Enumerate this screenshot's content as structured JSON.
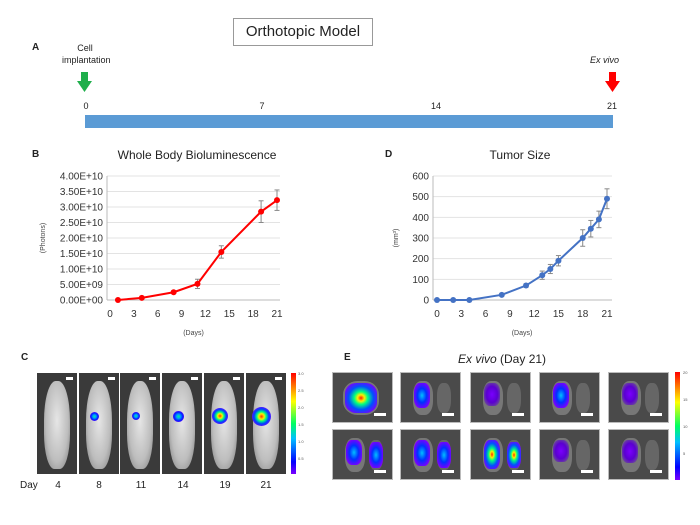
{
  "figure_title": "Orthotopic Model",
  "panel_labels": {
    "a": "A",
    "b": "B",
    "c": "C",
    "d": "D",
    "e": "E"
  },
  "timeline": {
    "start_event": "Cell implantation",
    "end_event": "Ex vivo",
    "ticks": [
      "0",
      "7",
      "14",
      "21"
    ],
    "colors": {
      "bar": "#5b9bd5",
      "start_arrow": "#1fae4b",
      "end_arrow": "#ff0000"
    }
  },
  "chart_data": [
    {
      "type": "line",
      "title": "Whole Body Bioluminescence",
      "xlabel": "(Days)",
      "ylabel": "(Photons)",
      "x_ticks": [
        "0",
        "3",
        "6",
        "9",
        "12",
        "15",
        "18",
        "21"
      ],
      "y_ticks": [
        "0.00E+00",
        "5.00E+09",
        "1.00E+10",
        "1.50E+10",
        "2.00E+10",
        "2.50E+10",
        "3.00E+10",
        "3.50E+10",
        "4.00E+10"
      ],
      "xlim": [
        0,
        21
      ],
      "ylim": [
        0,
        40000000000.0
      ],
      "grid": true,
      "color": "#ff0000",
      "x": [
        1,
        4,
        8,
        11,
        14,
        19,
        21
      ],
      "y": [
        0.0,
        700000000.0,
        2500000000.0,
        5200000000.0,
        15500000000.0,
        28500000000.0,
        32200000000.0
      ],
      "error": [
        100000000.0,
        200000000.0,
        300000000.0,
        1500000000.0,
        2000000000.0,
        3500000000.0,
        3300000000.0
      ]
    },
    {
      "type": "line",
      "title": "Tumor Size",
      "xlabel": "(Days)",
      "ylabel": "(mm³)",
      "x_ticks": [
        "0",
        "3",
        "6",
        "9",
        "12",
        "15",
        "18",
        "21"
      ],
      "y_ticks": [
        "0",
        "100",
        "200",
        "300",
        "400",
        "500",
        "600"
      ],
      "xlim": [
        0,
        21
      ],
      "ylim": [
        0,
        600
      ],
      "grid": true,
      "color": "#4472c4",
      "x": [
        0,
        2,
        4,
        8,
        11,
        13,
        14,
        15,
        18,
        19,
        20,
        21
      ],
      "y": [
        0,
        0,
        0,
        25,
        70,
        120,
        150,
        190,
        300,
        345,
        390,
        490
      ],
      "error": [
        0,
        0,
        0,
        5,
        8,
        20,
        22,
        25,
        40,
        40,
        40,
        48
      ]
    }
  ],
  "imaging": {
    "day_label": "Day",
    "days": [
      "4",
      "8",
      "11",
      "14",
      "19",
      "21"
    ],
    "colorbar_c": [
      "3.0",
      "2.5",
      "2.0",
      "1.5",
      "1.0",
      "0.5"
    ],
    "ex_vivo_title_italic": "Ex vivo",
    "ex_vivo_title_rest": " (Day 21)",
    "colorbar_e": [
      "20",
      "15",
      "10",
      "5"
    ]
  }
}
